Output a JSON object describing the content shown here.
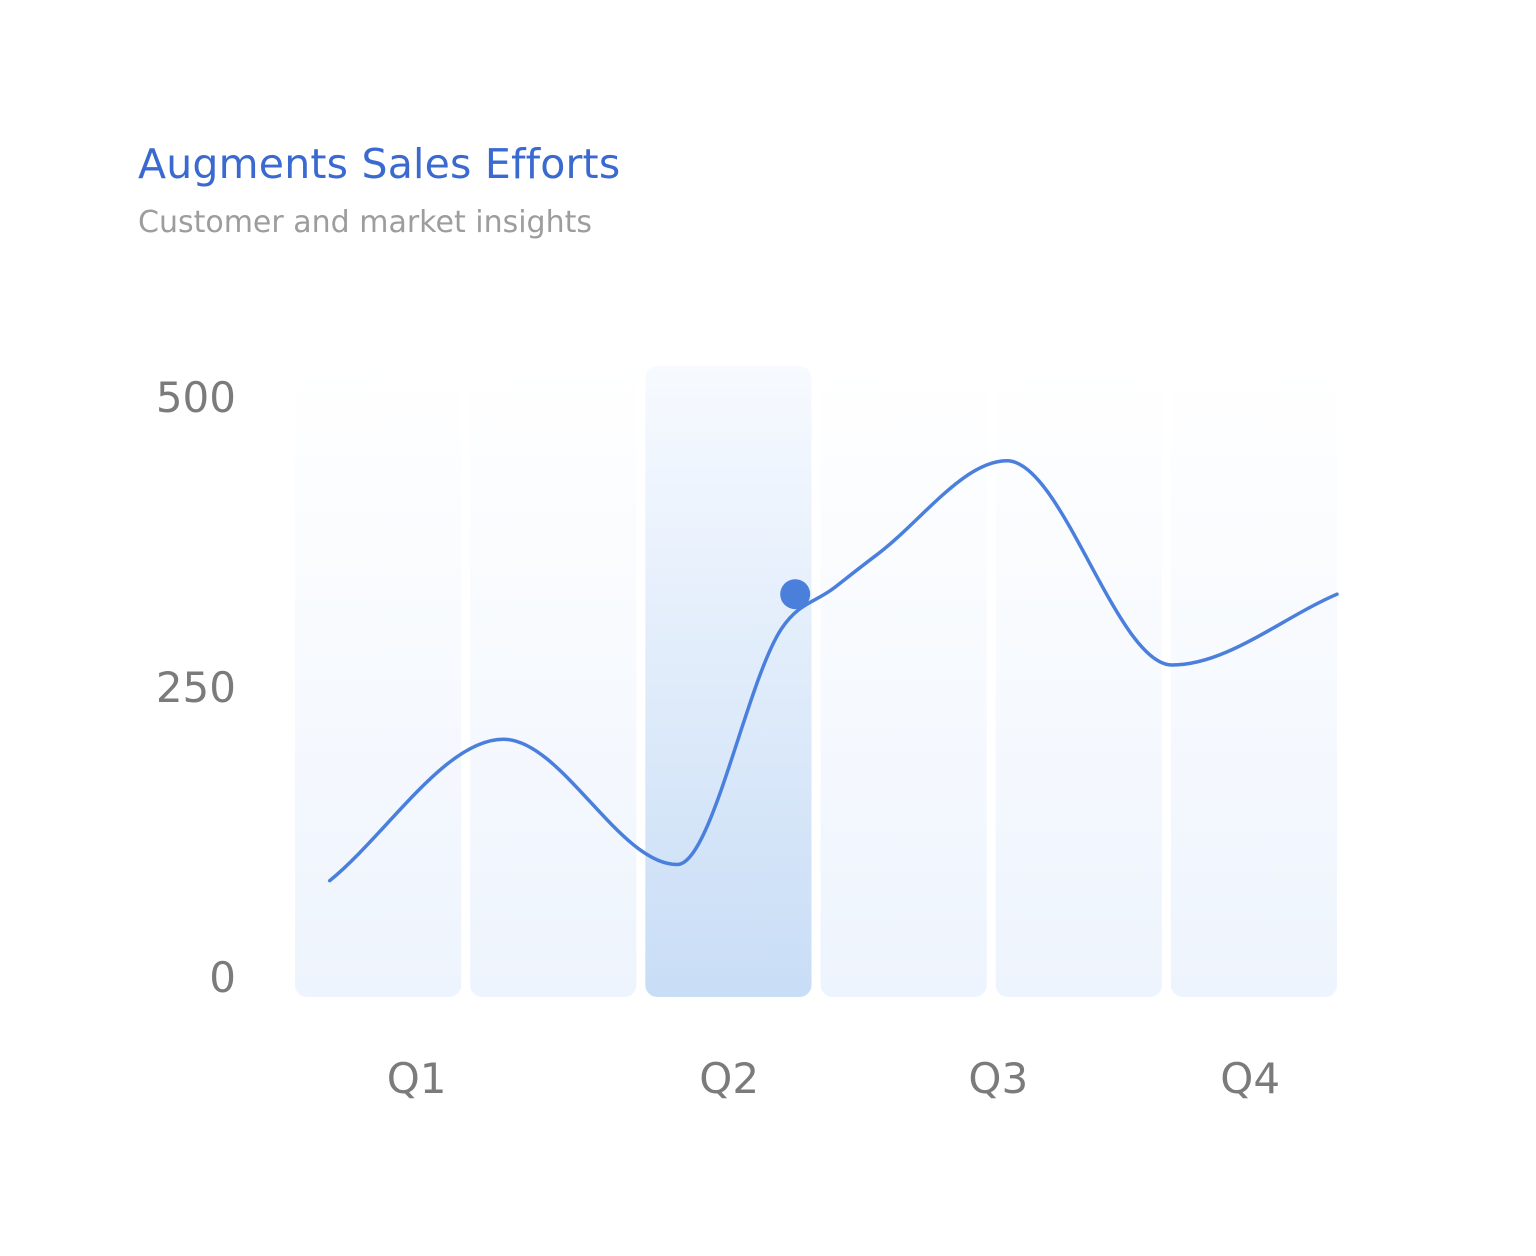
{
  "header": {
    "title": "Augments Sales Efforts",
    "subtitle": "Customer and market insights"
  },
  "colors": {
    "title": "#3a69cf",
    "subtitle": "#9d9d9d",
    "line": "#4a7fdc",
    "marker": "#4a7fdc",
    "column_light": "#eef4fd",
    "column_highlight": "#c8ddf6",
    "tick_text": "#7b7b7b"
  },
  "chart_data": {
    "type": "line",
    "title": "Augments Sales Efforts",
    "subtitle": "Customer and market insights",
    "xlabel": "",
    "ylabel": "",
    "x_tick_labels": [
      "Q1",
      "Q2",
      "Q3",
      "Q4"
    ],
    "y_tick_labels": [
      "500",
      "250",
      "0"
    ],
    "y_ticks": [
      500,
      250,
      0
    ],
    "ylim": [
      0,
      500
    ],
    "xlim": [
      0.5,
      6.5
    ],
    "grid": false,
    "legend": "none",
    "curve": "smooth",
    "columns": [
      {
        "x": 1,
        "highlighted": false
      },
      {
        "x": 2,
        "highlighted": false
      },
      {
        "x": 3,
        "highlighted": true
      },
      {
        "x": 4,
        "highlighted": false
      },
      {
        "x": 5,
        "highlighted": false
      },
      {
        "x": 6,
        "highlighted": false
      }
    ],
    "x_tick_positions": [
      1.2,
      3.0,
      4.55,
      6.0
    ],
    "series": [
      {
        "x": [
          0.7,
          1.7,
          2.7,
          3.3,
          3.6,
          3.85,
          4.6,
          5.55,
          6.5
        ],
        "values": [
          83,
          205,
          97,
          300,
          335,
          364,
          445,
          269,
          330
        ]
      }
    ],
    "highlight_point": {
      "x": 3.38,
      "y": 330
    }
  }
}
